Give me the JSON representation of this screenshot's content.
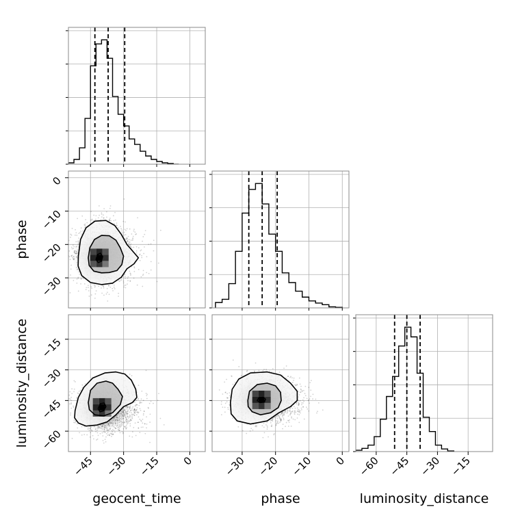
{
  "chart_data": {
    "type": "corner",
    "parameters": [
      {
        "label": "geocent_time",
        "lim": [
          -55,
          7
        ],
        "ticks": [
          -45,
          -30,
          -15,
          0
        ],
        "quantiles": [
          -43,
          -37,
          -29.5
        ]
      },
      {
        "label": "phase",
        "lim": [
          -39,
          2
        ],
        "ticks": [
          -30,
          -20,
          -10,
          0
        ],
        "quantiles": [
          -28,
          -24,
          -19.5
        ]
      },
      {
        "label": "luminosity_distance",
        "lim": [
          -70,
          -3
        ],
        "ticks": [
          -60,
          -45,
          -30,
          -15
        ],
        "quantiles": [
          -51,
          -45,
          -38.5
        ]
      }
    ],
    "histograms": [
      {
        "edges": [
          -55,
          -52.5,
          -50,
          -47.5,
          -45,
          -42.5,
          -40,
          -37.5,
          -35,
          -32.5,
          -30,
          -27.5,
          -25,
          -22.5,
          -20,
          -17.5,
          -15,
          -12.5,
          -10,
          -7.5,
          -5
        ],
        "counts": [
          2,
          7,
          24,
          67,
          144,
          176,
          182,
          155,
          99,
          73,
          56,
          37,
          29,
          19,
          12,
          7,
          4,
          2,
          1,
          0
        ]
      },
      {
        "edges": [
          -38,
          -36,
          -34,
          -32,
          -30,
          -28,
          -26,
          -24,
          -22,
          -20,
          -18,
          -16,
          -14,
          -12,
          -10,
          -8,
          -6,
          -4,
          -2,
          0
        ],
        "counts": [
          10,
          16,
          45,
          105,
          176,
          220,
          231,
          193,
          137,
          105,
          65,
          47,
          31,
          20,
          13,
          9,
          6,
          2,
          1
        ]
      },
      {
        "edges": [
          -70,
          -67,
          -64,
          -61,
          -58,
          -55,
          -52,
          -49,
          -46,
          -43,
          -40,
          -37,
          -34,
          -31,
          -28,
          -25,
          -22
        ],
        "counts": [
          2,
          5,
          10,
          23,
          50,
          85,
          116,
          163,
          192,
          177,
          121,
          53,
          31,
          10,
          4,
          1
        ]
      }
    ],
    "contours": [
      {
        "x": 0,
        "y": 1,
        "levels": [
          [
            [
              -46,
              -24
            ],
            [
              -45.3,
              -21
            ],
            [
              -43.2,
              -18.5
            ],
            [
              -40,
              -17.3
            ],
            [
              -36.5,
              -17.4
            ],
            [
              -33.5,
              -18.7
            ],
            [
              -31.5,
              -21
            ],
            [
              -30,
              -23.5
            ],
            [
              -30.8,
              -26
            ],
            [
              -33,
              -27.8
            ],
            [
              -36.5,
              -28.4
            ],
            [
              -40,
              -28.5
            ],
            [
              -43.5,
              -28
            ],
            [
              -45.6,
              -26.3
            ]
          ],
          [
            [
              -50.5,
              -23.5
            ],
            [
              -49.5,
              -18.5
            ],
            [
              -47,
              -15
            ],
            [
              -43,
              -13
            ],
            [
              -38,
              -12.8
            ],
            [
              -34,
              -14.3
            ],
            [
              -31,
              -17
            ],
            [
              -28.5,
              -20
            ],
            [
              -25.5,
              -22.3
            ],
            [
              -23.3,
              -24
            ],
            [
              -25.3,
              -25.8
            ],
            [
              -28.5,
              -27.3
            ],
            [
              -31,
              -29.8
            ],
            [
              -35,
              -31.6
            ],
            [
              -40,
              -32
            ],
            [
              -45,
              -31.4
            ],
            [
              -49,
              -29.3
            ],
            [
              -50.6,
              -26.5
            ]
          ],
          [
            [
              -42.5,
              -24.5
            ],
            [
              -41.8,
              -23
            ],
            [
              -40.5,
              -22.6
            ],
            [
              -39.5,
              -23.6
            ],
            [
              -40,
              -25
            ],
            [
              -41.5,
              -25.4
            ]
          ]
        ]
      },
      {
        "x": 0,
        "y": 2,
        "levels": [
          [
            [
              -46,
              -46
            ],
            [
              -45,
              -40
            ],
            [
              -42,
              -36.5
            ],
            [
              -38,
              -35.5
            ],
            [
              -35,
              -36.5
            ],
            [
              -32.5,
              -39.5
            ],
            [
              -30.5,
              -43
            ],
            [
              -31.5,
              -47
            ],
            [
              -35,
              -51
            ],
            [
              -39,
              -52.5
            ],
            [
              -43,
              -52
            ],
            [
              -45.5,
              -49.5
            ]
          ],
          [
            [
              -52,
              -50
            ],
            [
              -50.5,
              -43.5
            ],
            [
              -48,
              -38.5
            ],
            [
              -44,
              -34
            ],
            [
              -38.5,
              -31.5
            ],
            [
              -33.5,
              -31
            ],
            [
              -29.5,
              -32
            ],
            [
              -26.5,
              -35
            ],
            [
              -24.5,
              -39.5
            ],
            [
              -24,
              -43.5
            ],
            [
              -26,
              -46
            ],
            [
              -30,
              -48
            ],
            [
              -33.5,
              -52
            ],
            [
              -37.5,
              -55.5
            ],
            [
              -42,
              -57
            ],
            [
              -47,
              -57.5
            ],
            [
              -50.5,
              -56
            ],
            [
              -52.2,
              -53.5
            ]
          ],
          [
            [
              -41.5,
              -49
            ],
            [
              -40.5,
              -46.5
            ],
            [
              -38.8,
              -46.2
            ],
            [
              -38,
              -48
            ],
            [
              -39,
              -50
            ],
            [
              -40.7,
              -50.5
            ]
          ]
        ]
      },
      {
        "x": 1,
        "y": 2,
        "levels": [
          [
            [
              -28.3,
              -45
            ],
            [
              -27.8,
              -40.5
            ],
            [
              -25.5,
              -37.2
            ],
            [
              -22.5,
              -36.5
            ],
            [
              -20,
              -37.8
            ],
            [
              -18.5,
              -41
            ],
            [
              -18.3,
              -45
            ],
            [
              -19.2,
              -48.5
            ],
            [
              -21.5,
              -51
            ],
            [
              -24.5,
              -52
            ],
            [
              -27,
              -50.5
            ],
            [
              -28.2,
              -48
            ]
          ],
          [
            [
              -33.5,
              -46
            ],
            [
              -33,
              -39.5
            ],
            [
              -31,
              -34.5
            ],
            [
              -27.5,
              -31.5
            ],
            [
              -22.5,
              -31
            ],
            [
              -18.5,
              -32.5
            ],
            [
              -15.5,
              -36.5
            ],
            [
              -13.5,
              -40.5
            ],
            [
              -13.5,
              -45
            ],
            [
              -15.5,
              -48
            ],
            [
              -19,
              -51
            ],
            [
              -22.5,
              -55
            ],
            [
              -27.5,
              -56.5
            ],
            [
              -31.5,
              -55
            ],
            [
              -33.3,
              -51.5
            ]
          ],
          [
            [
              -25.5,
              -45
            ],
            [
              -25,
              -43.7
            ],
            [
              -23.8,
              -43.4
            ],
            [
              -23,
              -44.3
            ],
            [
              -23.3,
              -45.7
            ],
            [
              -24.6,
              -46
            ]
          ]
        ]
      }
    ],
    "grid": true
  }
}
